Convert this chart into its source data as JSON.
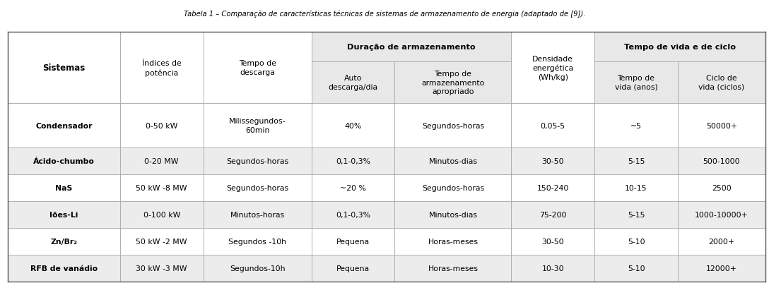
{
  "title": "Tabela 1 – Comparação de características técnicas de sistemas de armazenamento de energia (adaptado de [9]).",
  "rows": [
    [
      "Condensador",
      "0-50 kW",
      "Milissegundos-\n60min",
      "40%",
      "Segundos-horas",
      "0,05-5",
      "~5",
      "50000+"
    ],
    [
      "Ácido-chumbo",
      "0-20 MW",
      "Segundos-horas",
      "0,1-0,3%",
      "Minutos-dias",
      "30-50",
      "5-15",
      "500-1000"
    ],
    [
      "NaS",
      "50 kW -8 MW",
      "Segundos-horas",
      "~20 %",
      "Segundos-horas",
      "150-240",
      "10-15",
      "2500"
    ],
    [
      "Iões-Li",
      "0-100 kW",
      "Minutos-horas",
      "0,1-0,3%",
      "Minutos-dias",
      "75-200",
      "5-15",
      "1000-10000+"
    ],
    [
      "Zn/Br₂",
      "50 kW -2 MW",
      "Segundos -10h",
      "Pequena",
      "Horas-meses",
      "30-50",
      "5-10",
      "2000+"
    ],
    [
      "RFB de vanádio",
      "30 kW -3 MW",
      "Segundos-10h",
      "Pequena",
      "Horas-meses",
      "10-30",
      "5-10",
      "12000+"
    ]
  ],
  "row_bg": [
    "#ffffff",
    "#ececec",
    "#ffffff",
    "#ececec",
    "#ffffff",
    "#ececec"
  ],
  "header_bg": "#e8e8e8",
  "group_header_bg": "#e8e8e8",
  "white_bg": "#ffffff",
  "border_color": "#aaaaaa",
  "text_color": "#000000",
  "title_color": "#000000",
  "col_widths_norm": [
    1.35,
    1.0,
    1.3,
    1.0,
    1.4,
    1.0,
    1.0,
    1.05
  ],
  "figsize": [
    10.88,
    4.02
  ],
  "dpi": 100
}
